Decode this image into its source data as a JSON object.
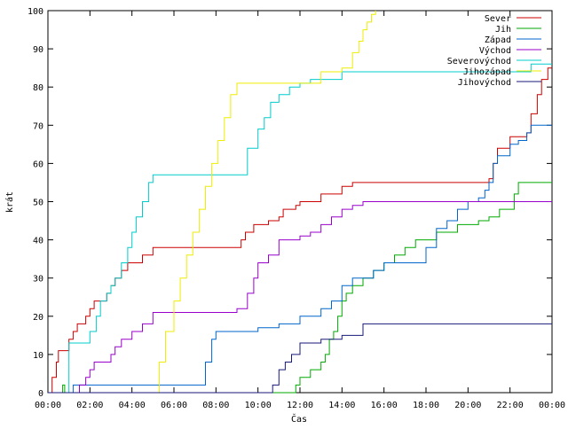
{
  "chart_data": {
    "type": "line",
    "xlabel": "Čas",
    "ylabel": "krát",
    "xlim": [
      0,
      24
    ],
    "ylim": [
      0,
      100
    ],
    "x_ticks": [
      0,
      2,
      4,
      6,
      8,
      10,
      12,
      14,
      16,
      18,
      20,
      22,
      24
    ],
    "x_tick_labels": [
      "00:00",
      "02:00",
      "04:00",
      "06:00",
      "08:00",
      "10:00",
      "12:00",
      "14:00",
      "16:00",
      "18:00",
      "20:00",
      "22:00",
      "00:00"
    ],
    "y_ticks": [
      0,
      10,
      20,
      30,
      40,
      50,
      60,
      70,
      80,
      90,
      100
    ],
    "y_tick_labels": [
      "0",
      "10",
      "20",
      "30",
      "40",
      "50",
      "60",
      "70",
      "80",
      "90",
      "100"
    ],
    "grid": false,
    "legend_position": "top-right",
    "series": [
      {
        "name": "Sever",
        "color": "#cc0000",
        "x": [
          0,
          0.2,
          0.4,
          0.5,
          0.8,
          1.0,
          1.2,
          1.4,
          1.6,
          1.8,
          2.0,
          2.2,
          2.5,
          2.8,
          3.0,
          3.2,
          3.5,
          3.8,
          4.0,
          4.5,
          5.0,
          9.0,
          9.2,
          9.4,
          9.6,
          9.8,
          10.0,
          10.5,
          11.0,
          11.2,
          11.5,
          11.8,
          12.0,
          12.5,
          13.0,
          13.5,
          14.0,
          14.5,
          15.0,
          20.8,
          21.0,
          21.2,
          21.4,
          21.6,
          22.0,
          22.4,
          22.8,
          23.0,
          23.3,
          23.5,
          23.8,
          24.0
        ],
        "y": [
          0,
          4,
          8,
          11,
          11,
          14,
          16,
          18,
          18,
          20,
          22,
          24,
          24,
          26,
          28,
          30,
          32,
          34,
          34,
          36,
          38,
          38,
          40,
          42,
          42,
          44,
          44,
          45,
          46,
          48,
          48,
          49,
          50,
          50,
          52,
          52,
          54,
          55,
          55,
          55,
          56,
          60,
          64,
          64,
          67,
          67,
          68,
          73,
          78,
          82,
          85,
          85
        ]
      },
      {
        "name": "Jih",
        "color": "#00aa00",
        "x": [
          0,
          0.5,
          0.7,
          0.8,
          11.6,
          11.8,
          12.0,
          12.5,
          13.0,
          13.2,
          13.4,
          13.6,
          13.8,
          14.0,
          14.2,
          14.5,
          15.0,
          15.5,
          16.0,
          16.5,
          17.0,
          17.5,
          18.0,
          18.5,
          19.0,
          19.5,
          20.0,
          20.5,
          21.0,
          21.5,
          22.0,
          22.2,
          22.4,
          23.0,
          23.5,
          24.0
        ],
        "y": [
          0,
          0,
          2,
          0,
          0,
          2,
          4,
          6,
          8,
          10,
          14,
          16,
          20,
          24,
          26,
          28,
          30,
          32,
          34,
          36,
          38,
          40,
          40,
          42,
          42,
          44,
          44,
          45,
          46,
          48,
          48,
          52,
          55,
          55,
          55,
          55
        ]
      },
      {
        "name": "Západ",
        "color": "#0066cc",
        "x": [
          0,
          1.0,
          1.2,
          7.2,
          7.5,
          7.8,
          8.0,
          9.0,
          9.5,
          10.0,
          11.0,
          11.5,
          12.0,
          12.5,
          13.0,
          13.5,
          14.0,
          14.5,
          15.0,
          15.5,
          16.0,
          17.0,
          18.0,
          18.5,
          19.0,
          19.5,
          20.0,
          20.5,
          20.8,
          21.0,
          21.2,
          21.4,
          21.6,
          22.0,
          22.4,
          22.8,
          23.0,
          23.3,
          23.5,
          24.0
        ],
        "y": [
          0,
          0,
          2,
          2,
          8,
          14,
          16,
          16,
          16,
          17,
          18,
          18,
          20,
          20,
          22,
          24,
          28,
          30,
          30,
          32,
          34,
          34,
          38,
          43,
          45,
          48,
          50,
          51,
          53,
          55,
          60,
          62,
          62,
          65,
          66,
          68,
          70,
          70,
          70,
          70
        ]
      },
      {
        "name": "Východ",
        "color": "#9900cc",
        "x": [
          0,
          1.2,
          1.5,
          1.8,
          2.0,
          2.2,
          2.5,
          3.0,
          3.2,
          3.5,
          4.0,
          4.5,
          5.0,
          8.0,
          8.5,
          9.0,
          9.5,
          9.8,
          10.0,
          10.5,
          11.0,
          11.5,
          12.0,
          12.5,
          13.0,
          13.5,
          14.0,
          14.5,
          15.0,
          16.0,
          20.0,
          22.0,
          24.0
        ],
        "y": [
          0,
          0,
          2,
          4,
          6,
          8,
          8,
          10,
          12,
          14,
          16,
          18,
          21,
          21,
          21,
          22,
          26,
          30,
          34,
          36,
          40,
          40,
          41,
          42,
          44,
          46,
          48,
          49,
          50,
          50,
          50,
          50,
          50
        ]
      },
      {
        "name": "Severovýchod",
        "color": "#00cccc",
        "x": [
          0,
          0.6,
          1.0,
          1.5,
          2.0,
          2.3,
          2.5,
          2.8,
          3.0,
          3.2,
          3.5,
          3.8,
          4.0,
          4.2,
          4.5,
          4.8,
          5.0,
          8.0,
          9.0,
          9.5,
          10.0,
          10.3,
          10.6,
          11.0,
          11.5,
          12.0,
          12.5,
          13.0,
          14.0,
          15.0,
          16.0,
          20.0,
          23.0,
          24.0
        ],
        "y": [
          0,
          0,
          13,
          13,
          16,
          20,
          24,
          26,
          28,
          30,
          34,
          38,
          42,
          46,
          50,
          55,
          57,
          57,
          57,
          64,
          69,
          72,
          76,
          78,
          80,
          81,
          82,
          82,
          84,
          84,
          84,
          84,
          86,
          86
        ]
      },
      {
        "name": "Jihozápad",
        "color": "#eeee00",
        "x": [
          0,
          5.0,
          5.3,
          5.6,
          6.0,
          6.3,
          6.6,
          6.9,
          7.2,
          7.5,
          7.8,
          8.1,
          8.4,
          8.7,
          9.0,
          10.0,
          11.0,
          11.5,
          12.0,
          12.5,
          13.0,
          13.5,
          14.0,
          14.5,
          14.8,
          15.0,
          15.2,
          15.4,
          15.6
        ],
        "y": [
          0,
          0,
          8,
          16,
          24,
          30,
          36,
          42,
          48,
          54,
          60,
          66,
          72,
          78,
          81,
          81,
          81,
          81,
          81,
          81,
          84,
          84,
          85,
          89,
          92,
          95,
          97,
          99,
          100
        ]
      },
      {
        "name": "Jihovýchod",
        "color": "#1a1a7a",
        "x": [
          0,
          10.5,
          10.7,
          11.0,
          11.3,
          11.6,
          12.0,
          12.5,
          13.0,
          13.5,
          14.0,
          14.5,
          14.8,
          15.0,
          16.0,
          20.0,
          24.0
        ],
        "y": [
          0,
          0,
          2,
          6,
          8,
          10,
          13,
          13,
          14,
          14,
          15,
          15,
          15,
          18,
          18,
          18,
          18
        ]
      }
    ]
  }
}
